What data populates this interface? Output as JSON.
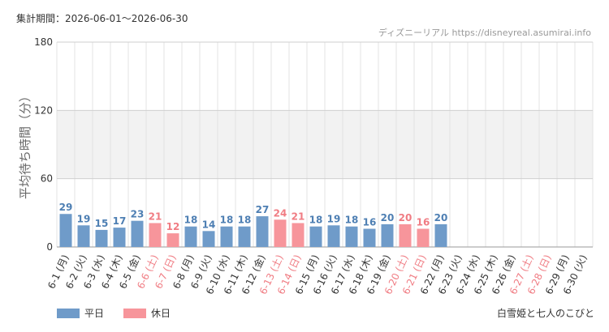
{
  "header": {
    "period": "集計期間：2026-06-01～2026-06-30",
    "source": "ディズニーリアル https://disneyreal.asumirai.info"
  },
  "footer": {
    "attraction": "白雪姫と七人のこびと"
  },
  "colors": {
    "weekday": "#6f9bc9",
    "holiday": "#f7959b",
    "weekday_label": "#4e7fb3",
    "holiday_label": "#f07c83",
    "band": "#f2f2f2",
    "grid": "#e3e3e3"
  },
  "chart_data": {
    "type": "bar",
    "ylabel": "平均待ち時間（分）",
    "ylim": [
      0,
      180
    ],
    "yticks": [
      0,
      60,
      120,
      180
    ],
    "shaded_bands": [
      [
        60,
        120
      ]
    ],
    "grid": true,
    "legend_position": "bottom-left",
    "categories": [
      "6-1 (月)",
      "6-2 (火)",
      "6-3 (水)",
      "6-4 (木)",
      "6-5 (金)",
      "6-6 (土)",
      "6-7 (日)",
      "6-8 (月)",
      "6-9 (火)",
      "6-10 (水)",
      "6-11 (木)",
      "6-12 (金)",
      "6-13 (土)",
      "6-14 (日)",
      "6-15 (月)",
      "6-16 (火)",
      "6-17 (水)",
      "6-18 (木)",
      "6-19 (金)",
      "6-20 (土)",
      "6-21 (日)",
      "6-22 (月)",
      "6-23 (火)",
      "6-24 (水)",
      "6-25 (木)",
      "6-26 (金)",
      "6-27 (土)",
      "6-28 (日)",
      "6-29 (月)",
      "6-30 (火)"
    ],
    "values": [
      29,
      19,
      15,
      17,
      23,
      21,
      12,
      18,
      14,
      18,
      18,
      27,
      24,
      21,
      18,
      19,
      18,
      16,
      20,
      20,
      16,
      20,
      null,
      null,
      null,
      null,
      null,
      null,
      null,
      null
    ],
    "day_type": [
      "平日",
      "平日",
      "平日",
      "平日",
      "平日",
      "休日",
      "休日",
      "平日",
      "平日",
      "平日",
      "平日",
      "平日",
      "休日",
      "休日",
      "平日",
      "平日",
      "平日",
      "平日",
      "平日",
      "休日",
      "休日",
      "平日",
      "平日",
      "平日",
      "平日",
      "平日",
      "休日",
      "休日",
      "平日",
      "平日"
    ],
    "series": [
      {
        "name": "平日",
        "color": "#6f9bc9"
      },
      {
        "name": "休日",
        "color": "#f7959b"
      }
    ]
  }
}
